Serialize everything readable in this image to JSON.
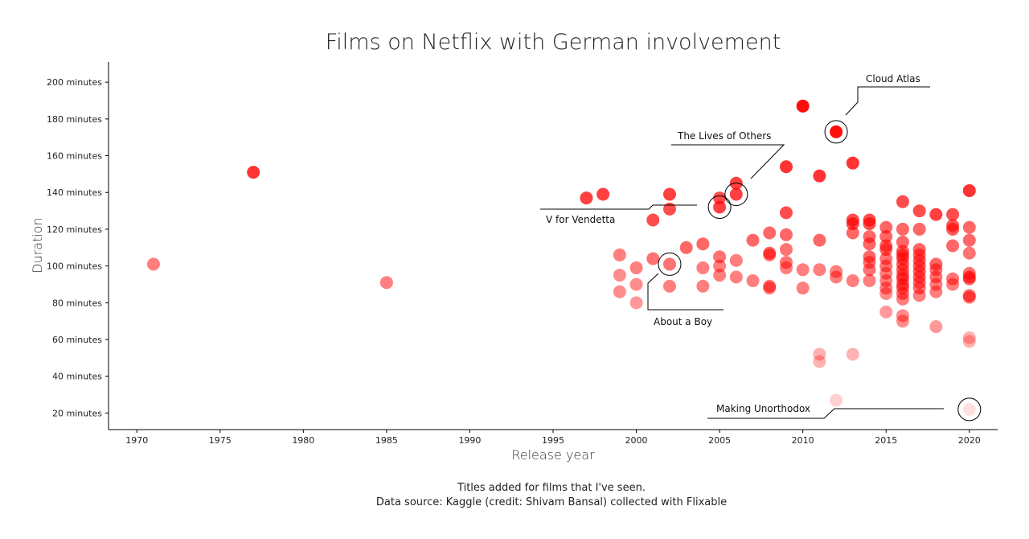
{
  "chart_data": {
    "type": "scatter",
    "title": "Films on Netflix with German involvement",
    "xlabel": "Release year",
    "ylabel": "Duration",
    "xlim": [
      1968.3,
      2021.7
    ],
    "ylim": [
      11,
      211
    ],
    "x_ticks": [
      1970,
      1975,
      1980,
      1985,
      1990,
      1995,
      2000,
      2005,
      2010,
      2015,
      2020
    ],
    "y_ticks": [
      20,
      40,
      60,
      80,
      100,
      120,
      140,
      160,
      180,
      200
    ],
    "y_tick_suffix": " minutes",
    "grid": false,
    "color": "#ff0000",
    "points": [
      [
        1971,
        101,
        0.5
      ],
      [
        1977,
        151,
        0.8
      ],
      [
        1985,
        91,
        0.5
      ],
      [
        1997,
        137,
        0.75
      ],
      [
        1998,
        139,
        0.75
      ],
      [
        1999,
        106,
        0.5
      ],
      [
        1999,
        95,
        0.45
      ],
      [
        1999,
        86,
        0.45
      ],
      [
        2000,
        99,
        0.5
      ],
      [
        2000,
        90,
        0.45
      ],
      [
        2000,
        80,
        0.4
      ],
      [
        2001,
        125,
        0.7
      ],
      [
        2001,
        104,
        0.55
      ],
      [
        2002,
        139,
        0.75
      ],
      [
        2002,
        131,
        0.7
      ],
      [
        2002,
        101,
        0.55
      ],
      [
        2002,
        89,
        0.5
      ],
      [
        2003,
        110,
        0.6
      ],
      [
        2004,
        112,
        0.6
      ],
      [
        2004,
        99,
        0.5
      ],
      [
        2004,
        89,
        0.5
      ],
      [
        2005,
        137,
        0.7
      ],
      [
        2005,
        132,
        0.75
      ],
      [
        2005,
        105,
        0.55
      ],
      [
        2005,
        100,
        0.5
      ],
      [
        2005,
        95,
        0.5
      ],
      [
        2006,
        145,
        0.75
      ],
      [
        2006,
        139,
        0.75
      ],
      [
        2006,
        103,
        0.5
      ],
      [
        2006,
        94,
        0.5
      ],
      [
        2007,
        114,
        0.6
      ],
      [
        2007,
        92,
        0.5
      ],
      [
        2008,
        118,
        0.6
      ],
      [
        2008,
        107,
        0.6
      ],
      [
        2008,
        106,
        0.55
      ],
      [
        2008,
        89,
        0.55
      ],
      [
        2008,
        88,
        0.5
      ],
      [
        2009,
        154,
        0.8
      ],
      [
        2009,
        129,
        0.7
      ],
      [
        2009,
        117,
        0.6
      ],
      [
        2009,
        109,
        0.55
      ],
      [
        2009,
        102,
        0.55
      ],
      [
        2009,
        99,
        0.5
      ],
      [
        2010,
        187,
        0.95
      ],
      [
        2010,
        98,
        0.5
      ],
      [
        2010,
        88,
        0.5
      ],
      [
        2011,
        149,
        0.8
      ],
      [
        2011,
        114,
        0.6
      ],
      [
        2011,
        98,
        0.5
      ],
      [
        2011,
        52,
        0.3
      ],
      [
        2011,
        48,
        0.3
      ],
      [
        2012,
        173,
        0.95
      ],
      [
        2012,
        97,
        0.5
      ],
      [
        2012,
        94,
        0.5
      ],
      [
        2012,
        27,
        0.18
      ],
      [
        2013,
        156,
        0.8
      ],
      [
        2013,
        125,
        0.7
      ],
      [
        2013,
        123,
        0.7
      ],
      [
        2013,
        118,
        0.6
      ],
      [
        2013,
        92,
        0.5
      ],
      [
        2013,
        52,
        0.3
      ],
      [
        2014,
        125,
        0.7
      ],
      [
        2014,
        123,
        0.7
      ],
      [
        2014,
        116,
        0.6
      ],
      [
        2014,
        112,
        0.6
      ],
      [
        2014,
        105,
        0.6
      ],
      [
        2014,
        102,
        0.55
      ],
      [
        2014,
        98,
        0.55
      ],
      [
        2014,
        92,
        0.5
      ],
      [
        2015,
        121,
        0.6
      ],
      [
        2015,
        116,
        0.6
      ],
      [
        2015,
        111,
        0.6
      ],
      [
        2015,
        109,
        0.6
      ],
      [
        2015,
        104,
        0.55
      ],
      [
        2015,
        100,
        0.55
      ],
      [
        2015,
        96,
        0.5
      ],
      [
        2015,
        92,
        0.5
      ],
      [
        2015,
        88,
        0.5
      ],
      [
        2015,
        85,
        0.45
      ],
      [
        2015,
        75,
        0.4
      ],
      [
        2016,
        135,
        0.7
      ],
      [
        2016,
        120,
        0.6
      ],
      [
        2016,
        113,
        0.6
      ],
      [
        2016,
        108,
        0.6
      ],
      [
        2016,
        106,
        0.6
      ],
      [
        2016,
        104,
        0.6
      ],
      [
        2016,
        101,
        0.6
      ],
      [
        2016,
        98,
        0.6
      ],
      [
        2016,
        95,
        0.6
      ],
      [
        2016,
        93,
        0.6
      ],
      [
        2016,
        90,
        0.6
      ],
      [
        2016,
        88,
        0.55
      ],
      [
        2016,
        85,
        0.55
      ],
      [
        2016,
        82,
        0.5
      ],
      [
        2016,
        73,
        0.45
      ],
      [
        2016,
        70,
        0.45
      ],
      [
        2017,
        130,
        0.7
      ],
      [
        2017,
        120,
        0.6
      ],
      [
        2017,
        109,
        0.6
      ],
      [
        2017,
        106,
        0.6
      ],
      [
        2017,
        103,
        0.6
      ],
      [
        2017,
        100,
        0.6
      ],
      [
        2017,
        97,
        0.6
      ],
      [
        2017,
        94,
        0.6
      ],
      [
        2017,
        91,
        0.55
      ],
      [
        2017,
        88,
        0.55
      ],
      [
        2017,
        84,
        0.5
      ],
      [
        2018,
        128,
        0.75
      ],
      [
        2018,
        101,
        0.6
      ],
      [
        2018,
        98,
        0.55
      ],
      [
        2018,
        94,
        0.55
      ],
      [
        2018,
        90,
        0.5
      ],
      [
        2018,
        86,
        0.5
      ],
      [
        2018,
        67,
        0.4
      ],
      [
        2019,
        128,
        0.7
      ],
      [
        2019,
        122,
        0.65
      ],
      [
        2019,
        120,
        0.65
      ],
      [
        2019,
        111,
        0.6
      ],
      [
        2019,
        93,
        0.55
      ],
      [
        2019,
        90,
        0.5
      ],
      [
        2020,
        141,
        0.8
      ],
      [
        2020,
        121,
        0.6
      ],
      [
        2020,
        114,
        0.6
      ],
      [
        2020,
        107,
        0.55
      ],
      [
        2020,
        96,
        0.55
      ],
      [
        2020,
        94,
        0.6
      ],
      [
        2020,
        93,
        0.6
      ],
      [
        2020,
        84,
        0.55
      ],
      [
        2020,
        83,
        0.55
      ],
      [
        2020,
        61,
        0.3
      ],
      [
        2020,
        59,
        0.3
      ],
      [
        2020,
        22,
        0.12
      ]
    ],
    "annotations": [
      {
        "label": "Cloud Atlas",
        "x": 2012,
        "y": 173
      },
      {
        "label": "The Lives of Others",
        "x": 2006,
        "y": 139
      },
      {
        "label": "V for Vendetta",
        "x": 2005,
        "y": 132
      },
      {
        "label": "About a Boy",
        "x": 2002,
        "y": 101
      },
      {
        "label": "Making Unorthodox",
        "x": 2020,
        "y": 22
      }
    ],
    "caption": [
      "Titles added for films that I've seen.",
      "Data source: Kaggle (credit: Shivam Bansal) collected with Flixable"
    ]
  }
}
